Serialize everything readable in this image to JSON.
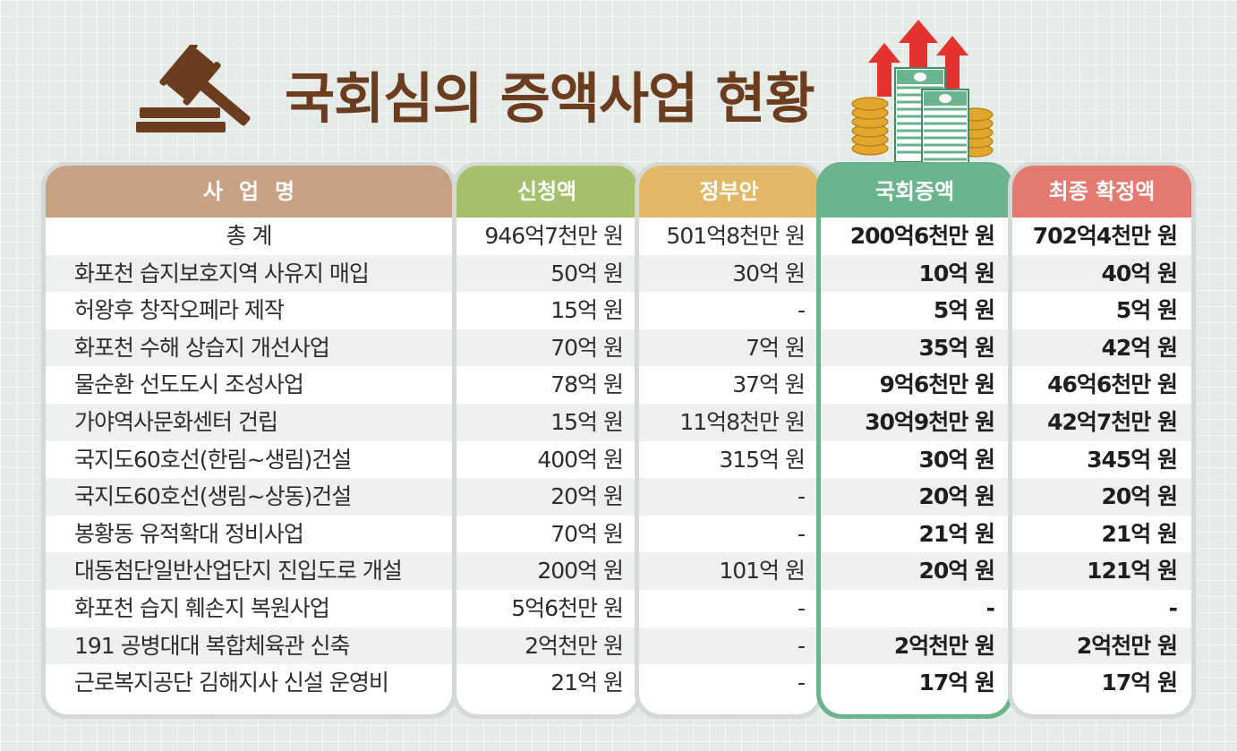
{
  "title": "국회심의 증액사업 현황",
  "colors": {
    "title": "#6b3d1e",
    "header_name": "#c8a084",
    "header_request": "#a6bf6a",
    "header_government": "#e2b768",
    "header_added": "#69b48d",
    "header_final": "#e4796f"
  },
  "icons": {
    "left": "gavel-icon",
    "right": "money-stack-arrows-icon"
  },
  "table": {
    "headers": {
      "name": "사업명",
      "request": "신청액",
      "government": "정부안",
      "added": "국회증액",
      "final": "최종 확정액"
    },
    "rows": [
      {
        "name": "총 계",
        "request": "946억7천만 원",
        "government": "501억8천만 원",
        "added": "200억6천만 원",
        "final": "702억4천만 원"
      },
      {
        "name": "화포천 습지보호지역 사유지 매입",
        "request": "50억 원",
        "government": "30억 원",
        "added": "10억 원",
        "final": "40억 원"
      },
      {
        "name": "허왕후 창작오페라 제작",
        "request": "15억 원",
        "government": "-",
        "added": "5억 원",
        "final": "5억 원"
      },
      {
        "name": "화포천 수해 상습지 개선사업",
        "request": "70억 원",
        "government": "7억 원",
        "added": "35억 원",
        "final": "42억 원"
      },
      {
        "name": "물순환 선도도시 조성사업",
        "request": "78억 원",
        "government": "37억 원",
        "added": "9억6천만 원",
        "final": "46억6천만 원"
      },
      {
        "name": "가야역사문화센터 건립",
        "request": "15억 원",
        "government": "11억8천만 원",
        "added": "30억9천만 원",
        "final": "42억7천만 원"
      },
      {
        "name": "국지도60호선(한림~생림)건설",
        "request": "400억 원",
        "government": "315억 원",
        "added": "30억 원",
        "final": "345억 원"
      },
      {
        "name": "국지도60호선(생림~상동)건설",
        "request": "20억 원",
        "government": "-",
        "added": "20억 원",
        "final": "20억 원"
      },
      {
        "name": "봉황동 유적확대 정비사업",
        "request": "70억 원",
        "government": "-",
        "added": "21억 원",
        "final": "21억 원"
      },
      {
        "name": "대동첨단일반산업단지 진입도로 개설",
        "request": "200억 원",
        "government": "101억 원",
        "added": "20억 원",
        "final": "121억 원"
      },
      {
        "name": "화포천 습지 훼손지 복원사업",
        "request": "5억6천만 원",
        "government": "-",
        "added": "-",
        "final": "-"
      },
      {
        "name": "191 공병대대 복합체육관 신축",
        "request": "2억천만 원",
        "government": "-",
        "added": "2억천만 원",
        "final": "2억천만 원"
      },
      {
        "name": "근로복지공단 김해지사 신설 운영비",
        "request": "21억 원",
        "government": "-",
        "added": "17억 원",
        "final": "17억 원"
      }
    ]
  }
}
